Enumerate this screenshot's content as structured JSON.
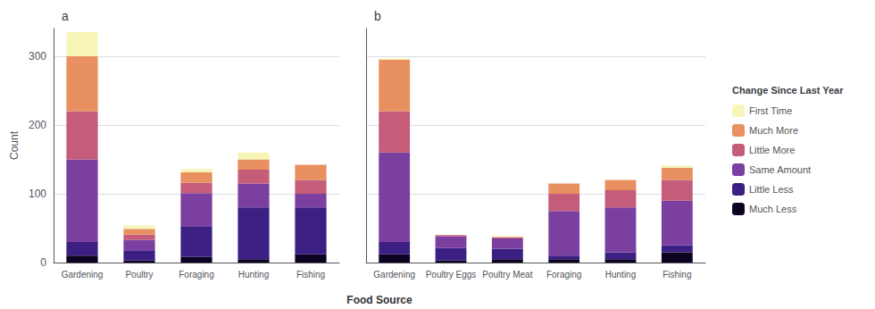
{
  "chart_data": [
    {
      "type": "bar",
      "title": "a",
      "xlabel": "Food Source",
      "ylabel": "Count",
      "categories": [
        "Gardening",
        "Poultry",
        "Foraging",
        "Hunting",
        "Fishing"
      ],
      "series": [
        {
          "name": "Much Less",
          "color": "#0d0221",
          "values": [
            10,
            3,
            8,
            5,
            12
          ]
        },
        {
          "name": "Little Less",
          "color": "#3b1f82",
          "values": [
            20,
            15,
            45,
            75,
            68
          ]
        },
        {
          "name": "Same Amount",
          "color": "#7b3fa0",
          "values": [
            120,
            15,
            48,
            35,
            20
          ]
        },
        {
          "name": "Little More",
          "color": "#c45c7a",
          "values": [
            70,
            8,
            15,
            20,
            20
          ]
        },
        {
          "name": "Much More",
          "color": "#e89060",
          "values": [
            80,
            8,
            15,
            15,
            22
          ]
        },
        {
          "name": "First Time",
          "color": "#f7f5b8",
          "values": [
            35,
            5,
            5,
            10,
            0
          ]
        }
      ],
      "ylim": [
        0,
        340
      ],
      "yticks": [
        0,
        100,
        200,
        300
      ],
      "grid": true,
      "stacked": true
    },
    {
      "type": "bar",
      "title": "b",
      "legend_title": "Change Since Last Year",
      "legend": "right",
      "categories": [
        "Gardening",
        "Poultry Eggs",
        "Poultry Meat",
        "Foraging",
        "Hunting",
        "Fishing"
      ],
      "series": [
        {
          "name": "Much Less",
          "color": "#0d0221",
          "values": [
            12,
            3,
            5,
            5,
            5,
            15
          ]
        },
        {
          "name": "Little Less",
          "color": "#3b1f82",
          "values": [
            18,
            18,
            15,
            5,
            10,
            10
          ]
        },
        {
          "name": "Same Amount",
          "color": "#7b3fa0",
          "values": [
            130,
            17,
            15,
            65,
            65,
            65
          ]
        },
        {
          "name": "Little More",
          "color": "#c45c7a",
          "values": [
            60,
            2,
            2,
            25,
            25,
            30
          ]
        },
        {
          "name": "Much More",
          "color": "#e89060",
          "values": [
            75,
            0,
            0,
            15,
            15,
            18
          ]
        },
        {
          "name": "First Time",
          "color": "#f7f5b8",
          "values": [
            2,
            0,
            2,
            0,
            0,
            3
          ]
        }
      ],
      "ylim": [
        0,
        340
      ],
      "yticks": [
        0,
        100,
        200,
        300
      ],
      "grid": true,
      "stacked": true,
      "tick_labels": "x"
    }
  ]
}
